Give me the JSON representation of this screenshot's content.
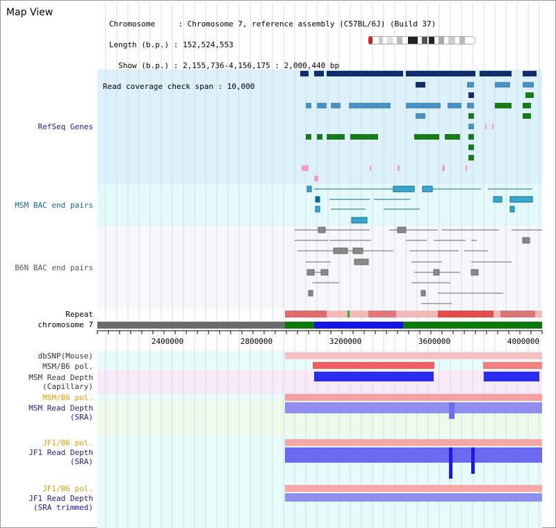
{
  "view_title": "Map View",
  "header": {
    "line1": "Chromosome     : Chromosome 7, reference assembly (C57BL/6J) (Build 37)",
    "line2": "Length (b.p.) : 152,524,553",
    "line3": "  Show (b.p.) : 2,155,736-4,156,175 : 2,000,440 bp",
    "line4": "Read coverage check span : 10,000"
  },
  "tracks": {
    "refseq": "RefSeq Genes",
    "msm_bac": "MSM BAC end pairs",
    "b6n_bac": "B6N BAC end pairs",
    "repeat": "Repeat",
    "chromosome": "chromosome 7",
    "dbsnp": "dbSNP(Mouse)",
    "msm_b6_pol_1": "MSM/B6 pol.",
    "msm_depth_cap": "MSM Read Depth\n(Capillary)",
    "msm_b6_pol_2": "MSM/B6 pol.",
    "msm_depth_sra": "MSM Read Depth\n(SRA)",
    "jf1_b6_pol_1": "JF1/B6 pol.",
    "jf1_depth_sra": "JF1 Read Depth\n(SRA)",
    "jf1_b6_pol_2": "JF1/B6 pol.",
    "jf1_depth_trim": "JF1 Read Depth\n(SRA trimmed)"
  },
  "scale": {
    "ticks": [
      "2400000",
      "2800000",
      "3200000",
      "3600000",
      "4000000"
    ]
  },
  "colors": {
    "gene_dark": "#0f2d6b",
    "gene_mid": "#4a90c0",
    "gene_green": "#1a7a1a",
    "gene_pink": "#f19cc3",
    "msm_bac": "#106a8f",
    "b6n_bac": "#666666",
    "depth_blue": "#3a3af0",
    "pol_red": "#f24040"
  }
}
